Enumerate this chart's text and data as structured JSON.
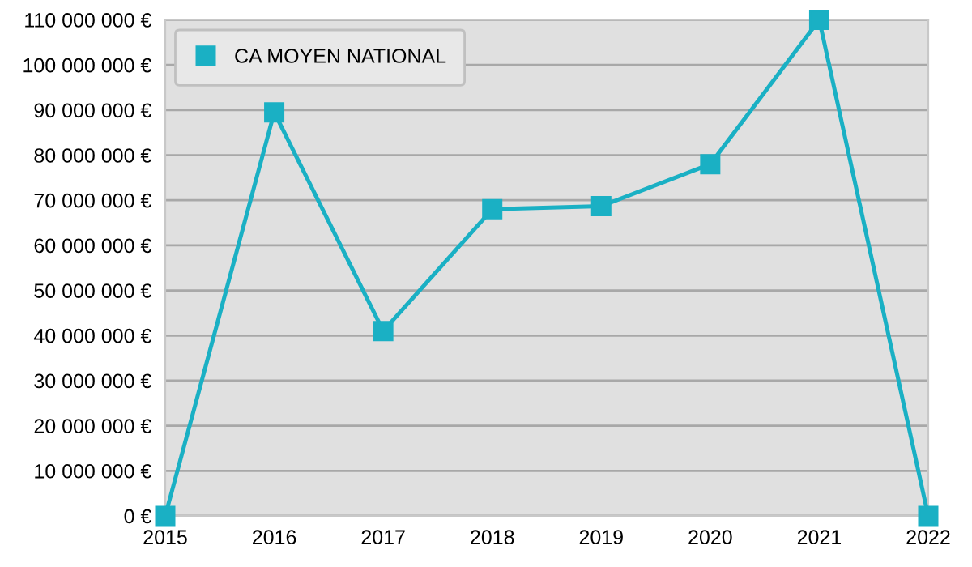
{
  "chart_data": {
    "type": "line",
    "x": [
      2015,
      2016,
      2017,
      2018,
      2019,
      2020,
      2021,
      2022
    ],
    "series": [
      {
        "name": "CA MOYEN NATIONAL",
        "color": "#1ab0c4",
        "values": [
          0,
          89500000,
          41000000,
          68000000,
          68700000,
          78000000,
          110000000,
          0
        ]
      }
    ],
    "xlim": [
      2015,
      2022
    ],
    "xticks": [
      2015,
      2016,
      2017,
      2018,
      2019,
      2020,
      2021,
      2022
    ],
    "ylim": [
      0,
      110000000
    ],
    "yticks": [
      {
        "value": 0,
        "label": "0 €"
      },
      {
        "value": 10000000,
        "label": "10 000 000 €"
      },
      {
        "value": 20000000,
        "label": "20 000 000 €"
      },
      {
        "value": 30000000,
        "label": "30 000 000 €"
      },
      {
        "value": 40000000,
        "label": "40 000 000 €"
      },
      {
        "value": 50000000,
        "label": "50 000 000 €"
      },
      {
        "value": 60000000,
        "label": "60 000 000 €"
      },
      {
        "value": 70000000,
        "label": "70 000 000 €"
      },
      {
        "value": 80000000,
        "label": "80 000 000 €"
      },
      {
        "value": 90000000,
        "label": "90 000 000 €"
      },
      {
        "value": 100000000,
        "label": "100 000 000 €"
      },
      {
        "value": 110000000,
        "label": "110 000 000 €"
      }
    ],
    "grid": "y",
    "legend": "top left",
    "marker": "square",
    "line_style": "solid"
  }
}
